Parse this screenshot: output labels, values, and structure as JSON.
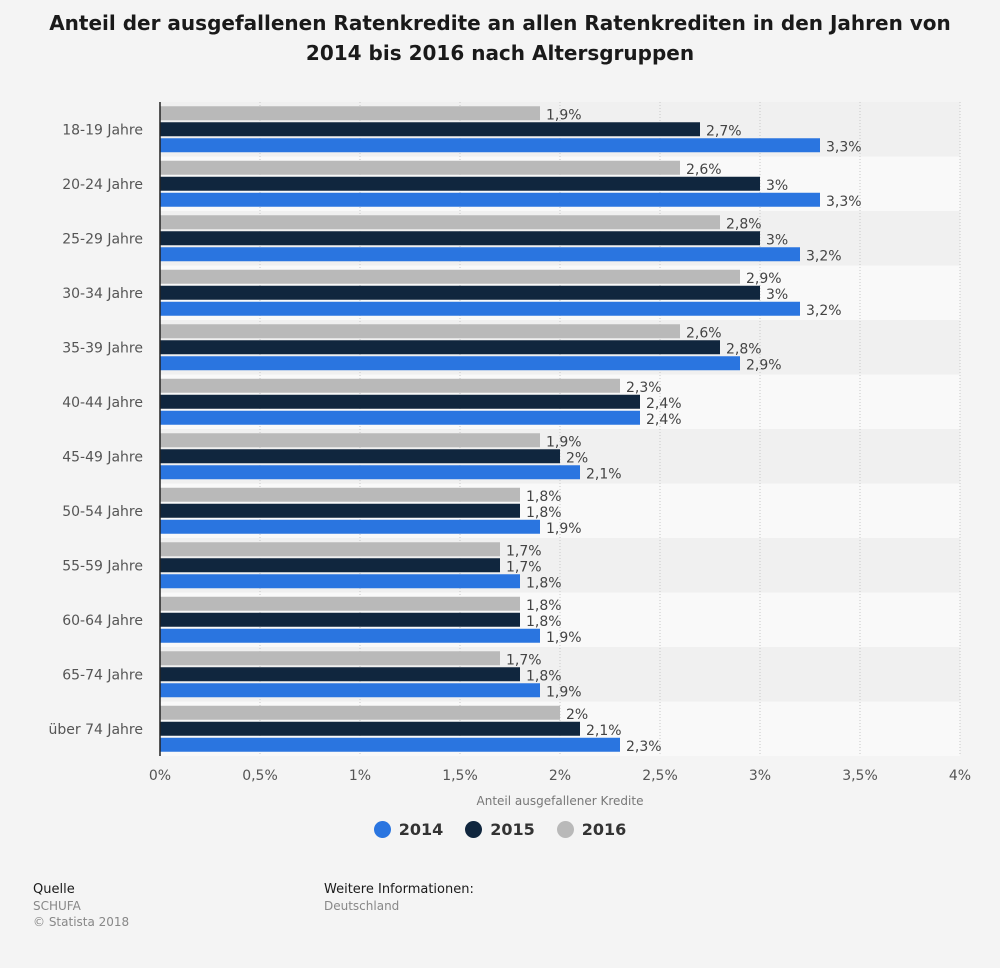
{
  "title": "Anteil der ausgefallenen Ratenkredite an allen Ratenkrediten in den Jahren von 2014 bis 2016 nach Altersgruppen",
  "colors": {
    "2014": "#2a75e0",
    "2015": "#10263e",
    "2016": "#b9b9b9"
  },
  "chart_data": {
    "type": "bar",
    "orientation": "horizontal",
    "categories": [
      "18-19 Jahre",
      "20-24 Jahre",
      "25-29 Jahre",
      "30-34 Jahre",
      "35-39 Jahre",
      "40-44 Jahre",
      "45-49 Jahre",
      "50-54 Jahre",
      "55-59 Jahre",
      "60-64 Jahre",
      "65-74 Jahre",
      "über 74 Jahre"
    ],
    "series": [
      {
        "name": "2016",
        "color": "#b9b9b9",
        "values": [
          1.9,
          2.6,
          2.8,
          2.9,
          2.6,
          2.3,
          1.9,
          1.8,
          1.7,
          1.8,
          1.7,
          2.0
        ],
        "labels": [
          "1,9%",
          "2,6%",
          "2,8%",
          "2,9%",
          "2,6%",
          "2,3%",
          "1,9%",
          "1,8%",
          "1,7%",
          "1,8%",
          "1,7%",
          "2%"
        ]
      },
      {
        "name": "2015",
        "color": "#10263e",
        "values": [
          2.7,
          3.0,
          3.0,
          3.0,
          2.8,
          2.4,
          2.0,
          1.8,
          1.7,
          1.8,
          1.8,
          2.1
        ],
        "labels": [
          "2,7%",
          "3%",
          "3%",
          "3%",
          "2,8%",
          "2,4%",
          "2%",
          "1,8%",
          "1,7%",
          "1,8%",
          "1,8%",
          "2,1%"
        ]
      },
      {
        "name": "2014",
        "color": "#2a75e0",
        "values": [
          3.3,
          3.3,
          3.2,
          3.2,
          2.9,
          2.4,
          2.1,
          1.9,
          1.8,
          1.9,
          1.9,
          2.3
        ],
        "labels": [
          "3,3%",
          "3,3%",
          "3,2%",
          "3,2%",
          "2,9%",
          "2,4%",
          "2,1%",
          "1,9%",
          "1,8%",
          "1,9%",
          "1,9%",
          "2,3%"
        ]
      }
    ],
    "xlim": [
      0,
      4
    ],
    "xticks": [
      0,
      0.5,
      1,
      1.5,
      2,
      2.5,
      3,
      3.5,
      4
    ],
    "xtick_labels": [
      "0%",
      "0,5%",
      "1%",
      "1,5%",
      "2%",
      "2,5%",
      "3%",
      "3,5%",
      "4%"
    ],
    "xlabel": "Anteil ausgefallener Kredite",
    "ylabel": "",
    "grid": true,
    "legend_position": "bottom"
  },
  "legend": [
    {
      "label": "2014",
      "color": "#2a75e0"
    },
    {
      "label": "2015",
      "color": "#10263e"
    },
    {
      "label": "2016",
      "color": "#b9b9b9"
    }
  ],
  "footer": {
    "source_heading": "Quelle",
    "source": "SCHUFA",
    "copyright": "© Statista 2018",
    "info_heading": "Weitere Informationen:",
    "info": "Deutschland"
  }
}
